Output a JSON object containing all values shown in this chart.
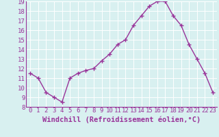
{
  "x": [
    0,
    1,
    2,
    3,
    4,
    5,
    6,
    7,
    8,
    9,
    10,
    11,
    12,
    13,
    14,
    15,
    16,
    17,
    18,
    19,
    20,
    21,
    22,
    23
  ],
  "y": [
    11.5,
    11.0,
    9.5,
    9.0,
    8.5,
    11.0,
    11.5,
    11.8,
    12.0,
    12.8,
    13.5,
    14.5,
    15.0,
    16.5,
    17.5,
    18.5,
    19.0,
    19.0,
    17.5,
    16.5,
    14.5,
    13.0,
    11.5,
    9.5
  ],
  "line_color": "#993399",
  "marker": "+",
  "marker_size": 4,
  "marker_linewidth": 1.0,
  "xlabel": "Windchill (Refroidissement éolien,°C)",
  "xlabel_fontsize": 7.5,
  "xtick_labels": [
    "0",
    "1",
    "2",
    "3",
    "4",
    "5",
    "6",
    "7",
    "8",
    "9",
    "10",
    "11",
    "12",
    "13",
    "14",
    "15",
    "16",
    "17",
    "18",
    "19",
    "20",
    "21",
    "22",
    "23"
  ],
  "ytick_min": 8,
  "ytick_max": 19,
  "ytick_step": 1,
  "bg_color": "#d8f0f0",
  "grid_color": "#ffffff",
  "grid_linewidth": 0.7,
  "tick_fontsize": 6.5,
  "line_width": 1.0
}
